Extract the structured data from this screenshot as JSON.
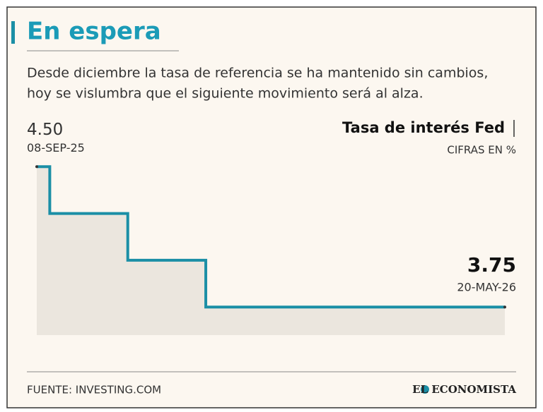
{
  "chart_data": {
    "type": "step",
    "title": "En espera",
    "subtitle_lines": [
      "Desde diciembre la tasa de referencia se ha mantenido sin cambios,",
      "hoy se vislumbra que el siguiente movimiento será al alza."
    ],
    "series_name": "Tasa de interés Fed",
    "units": "CIFRAS EN %",
    "source": "FUENTE: INVESTING.COM",
    "brand": "EL ECONOMISTA",
    "color": "#1b8fa6",
    "area_color": "#ebe6de",
    "ylim": [
      3.6,
      4.55
    ],
    "categories": [
      "08-SEP-25",
      null,
      null,
      null,
      null,
      null,
      null,
      null,
      null,
      null,
      null,
      null,
      null,
      null,
      null,
      null,
      null,
      null,
      null,
      null,
      null,
      null,
      null,
      null,
      null,
      null,
      null,
      null,
      null,
      null,
      null,
      null,
      null,
      null,
      null,
      null,
      "20-MAY-26"
    ],
    "values": [
      4.5,
      4.25,
      4.25,
      4.25,
      4.25,
      4.25,
      4.25,
      4.0,
      4.0,
      4.0,
      4.0,
      4.0,
      4.0,
      3.75,
      3.75,
      3.75,
      3.75,
      3.75,
      3.75,
      3.75,
      3.75,
      3.75,
      3.75,
      3.75,
      3.75,
      3.75,
      3.75,
      3.75,
      3.75,
      3.75,
      3.75,
      3.75,
      3.75,
      3.75,
      3.75,
      3.75,
      3.75
    ],
    "value_labels": [
      "4.50",
      null,
      null,
      null,
      null,
      null,
      null,
      null,
      null,
      null,
      null,
      null,
      null,
      null,
      null,
      null,
      null,
      null,
      null,
      null,
      null,
      null,
      null,
      null,
      null,
      null,
      null,
      null,
      null,
      null,
      null,
      null,
      null,
      null,
      null,
      null,
      "3.75"
    ]
  }
}
